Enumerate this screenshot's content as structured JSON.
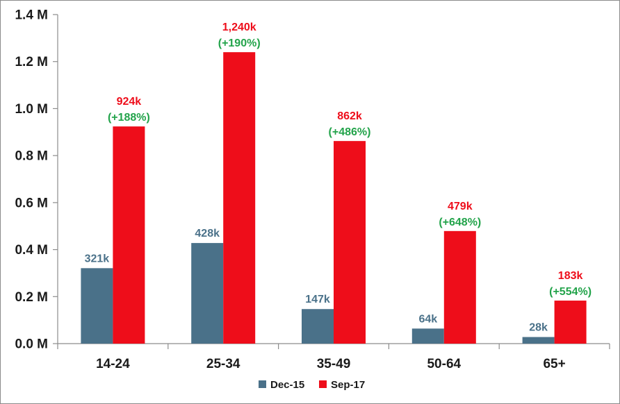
{
  "chart_data": {
    "type": "bar",
    "categories": [
      "14-24",
      "25-34",
      "35-49",
      "50-64",
      "65+"
    ],
    "series": [
      {
        "name": "Dec-15",
        "color": "#4a7189",
        "values": [
          321000,
          428000,
          147000,
          64000,
          28000
        ],
        "labels": [
          "321k",
          "428k",
          "147k",
          "64k",
          "28k"
        ],
        "label_color": "#4a7189"
      },
      {
        "name": "Sep-17",
        "color": "#ee0d1a",
        "values": [
          924000,
          1240000,
          862000,
          479000,
          183000
        ],
        "labels": [
          "924k",
          "1,240k",
          "862k",
          "479k",
          "183k"
        ],
        "growth": [
          "(+188%)",
          "(+190%)",
          "(+486%)",
          "(+648%)",
          "(+554%)"
        ],
        "label_color": "#ee0d1a",
        "growth_color": "#22a34a"
      }
    ],
    "ylim": [
      0,
      1400000
    ],
    "yticks": [
      {
        "value": 0,
        "label": "0.0 M"
      },
      {
        "value": 200000,
        "label": "0.2 M"
      },
      {
        "value": 400000,
        "label": "0.4 M"
      },
      {
        "value": 600000,
        "label": "0.6 M"
      },
      {
        "value": 800000,
        "label": "0.8 M"
      },
      {
        "value": 1000000,
        "label": "1.0 M"
      },
      {
        "value": 1200000,
        "label": "1.2 M"
      },
      {
        "value": 1400000,
        "label": "1.4 M"
      }
    ],
    "legend_position": "bottom",
    "grid": false
  }
}
